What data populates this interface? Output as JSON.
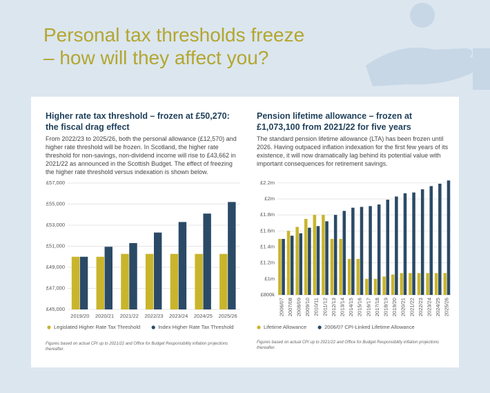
{
  "title": "Personal tax thresholds freeze – how will they affect you?",
  "chart_data": [
    {
      "type": "bar",
      "title": "Higher rate tax threshold – frozen at £50,270: the fiscal drag effect",
      "subtitle": "From 2022/23 to 2025/26, both the personal allowance (£12,570) and higher rate threshold will be frozen. In Scotland, the higher rate threshold for non-savings, non-dividend income will rise to £43,662 in 2021/22 as announced in the Scottish Budget. The effect of freezing the higher rate threshold versus indexation is shown below.",
      "note": "Figures based on actual CPI up to 2021/22 and Office for Budget Responsibility inflation projections thereafter.",
      "categories": [
        "2019/20",
        "2020/21",
        "2021/22",
        "2022/23",
        "2023/24",
        "2024/25",
        "2025/26"
      ],
      "series": [
        {
          "name": "Legislated Higher Rate Tax Threshold",
          "color": "#c9b52c",
          "values": [
            50000,
            50000,
            50270,
            50270,
            50270,
            50270,
            50270
          ]
        },
        {
          "name": "Index Higher Rate Tax Threshold",
          "color": "#2b4a66",
          "values": [
            50000,
            50950,
            51300,
            52300,
            53300,
            54100,
            55200
          ]
        }
      ],
      "ylim": [
        45000,
        57000
      ],
      "yticks": [
        {
          "value": 45000,
          "label": "£45,000"
        },
        {
          "value": 47000,
          "label": "£47,000"
        },
        {
          "value": 49000,
          "label": "£49,000"
        },
        {
          "value": 51000,
          "label": "£51,000"
        },
        {
          "value": 53000,
          "label": "£53,000"
        },
        {
          "value": 55000,
          "label": "£55,000"
        },
        {
          "value": 57000,
          "label": "£57,000"
        }
      ],
      "grid": true,
      "legend": "bottom"
    },
    {
      "type": "bar",
      "title": "Pension lifetime allowance – frozen at £1,073,100 from 2021/22 for five years",
      "subtitle": "The standard pension lifetime allowance (LTA) has been frozen until 2026. Having outpaced inflation indexation for the first few years of its existence, it will now dramatically lag behind its potential value with important consequences for retirement savings.",
      "note": "Figures based on actual CPI up to 2021/22 and Office for Budget Responsibility inflation projections thereafter.",
      "categories": [
        "2006/07",
        "2007/08",
        "2008/09",
        "2009/10",
        "2010/11",
        "2011/12",
        "2012/13",
        "2013/14",
        "2014/15",
        "2015/16",
        "2016/17",
        "2017/18",
        "2018/19",
        "2019/20",
        "2020/21",
        "2021/22",
        "2022/23",
        "2023/24",
        "2024/25",
        "2025/26"
      ],
      "series": [
        {
          "name": "Lifetime Allowance",
          "color": "#c9b52c",
          "values": [
            1500000,
            1600000,
            1650000,
            1750000,
            1800000,
            1800000,
            1500000,
            1500000,
            1250000,
            1250000,
            1000000,
            1000000,
            1030000,
            1055000,
            1073100,
            1073100,
            1073100,
            1073100,
            1073100,
            1073100
          ]
        },
        {
          "name": "2006/07 CPI-Linked Lifetime Allowance",
          "color": "#2b4a66",
          "values": [
            1500000,
            1540000,
            1570000,
            1640000,
            1660000,
            1720000,
            1800000,
            1850000,
            1890000,
            1900000,
            1910000,
            1930000,
            1990000,
            2030000,
            2070000,
            2080000,
            2120000,
            2160000,
            2190000,
            2230000
          ]
        }
      ],
      "ylim": [
        800000,
        2250000
      ],
      "yticks": [
        {
          "value": 800000,
          "label": "£800k"
        },
        {
          "value": 1000000,
          "label": "£1m"
        },
        {
          "value": 1200000,
          "label": "£1.2m"
        },
        {
          "value": 1400000,
          "label": "£1.4m"
        },
        {
          "value": 1600000,
          "label": "£1.6m"
        },
        {
          "value": 1800000,
          "label": "£1.8m"
        },
        {
          "value": 2000000,
          "label": "£2m"
        },
        {
          "value": 2200000,
          "label": "£2.2m"
        }
      ],
      "grid": true,
      "legend": "bottom"
    }
  ]
}
